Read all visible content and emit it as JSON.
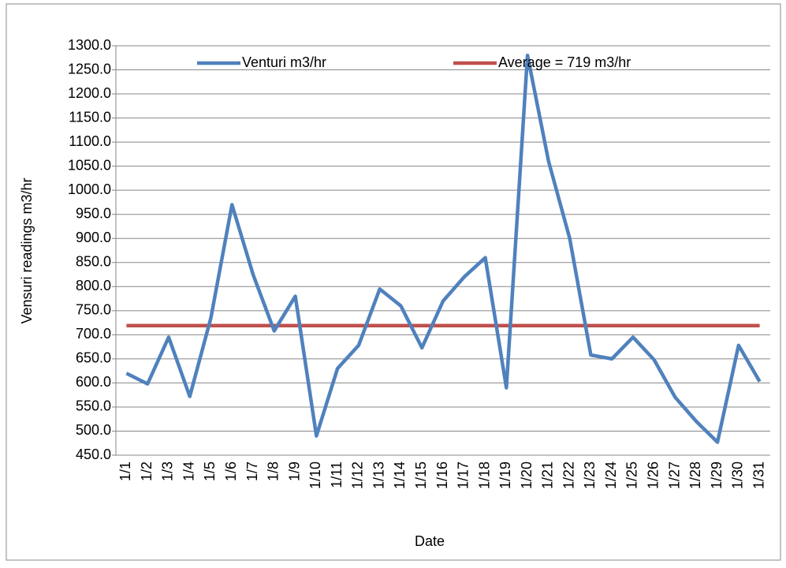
{
  "chart_data": {
    "type": "line",
    "x_label": "Date",
    "y_label": "Vensuri readings m3/hr",
    "categories": [
      "1/1",
      "1/2",
      "1/3",
      "1/4",
      "1/5",
      "1/6",
      "1/7",
      "1/8",
      "1/9",
      "1/10",
      "1/11",
      "1/12",
      "1/13",
      "1/14",
      "1/15",
      "1/16",
      "1/17",
      "1/18",
      "1/19",
      "1/20",
      "1/21",
      "1/22",
      "1/23",
      "1/24",
      "1/25",
      "1/26",
      "1/27",
      "1/28",
      "1/29",
      "1/30",
      "1/31"
    ],
    "series": [
      {
        "name": "Venturi m3/hr",
        "color": "#4f81bd",
        "values": [
          620,
          598,
          695,
          572,
          735,
          970,
          825,
          708,
          780,
          490,
          630,
          678,
          795,
          760,
          673,
          770,
          820,
          860,
          590,
          1280,
          1060,
          900,
          658,
          650,
          695,
          648,
          570,
          520,
          477,
          678,
          603
        ]
      },
      {
        "name": "Average = 719 m3/hr",
        "color": "#c0504d",
        "values": [
          719,
          719,
          719,
          719,
          719,
          719,
          719,
          719,
          719,
          719,
          719,
          719,
          719,
          719,
          719,
          719,
          719,
          719,
          719,
          719,
          719,
          719,
          719,
          719,
          719,
          719,
          719,
          719,
          719,
          719,
          719
        ]
      }
    ],
    "ylim": [
      450,
      1300
    ],
    "yticks": [
      {
        "value": 450,
        "label": "450.0"
      },
      {
        "value": 500,
        "label": "500.0"
      },
      {
        "value": 550,
        "label": "550.0"
      },
      {
        "value": 600,
        "label": "600.0"
      },
      {
        "value": 650,
        "label": "650.0"
      },
      {
        "value": 700,
        "label": "700.0"
      },
      {
        "value": 750,
        "label": "750.0"
      },
      {
        "value": 800,
        "label": "800.0"
      },
      {
        "value": 850,
        "label": "850.0"
      },
      {
        "value": 900,
        "label": "900.0"
      },
      {
        "value": 950,
        "label": "950.0"
      },
      {
        "value": 1000,
        "label": "1000.0"
      },
      {
        "value": 1050,
        "label": "1050.0"
      },
      {
        "value": 1100,
        "label": "1100.0"
      },
      {
        "value": 1150,
        "label": "1150.0"
      },
      {
        "value": 1200,
        "label": "1200.0"
      },
      {
        "value": 1250,
        "label": "1250.0"
      },
      {
        "value": 1300,
        "label": "1300.0"
      }
    ],
    "grid": true,
    "legend": "top"
  }
}
